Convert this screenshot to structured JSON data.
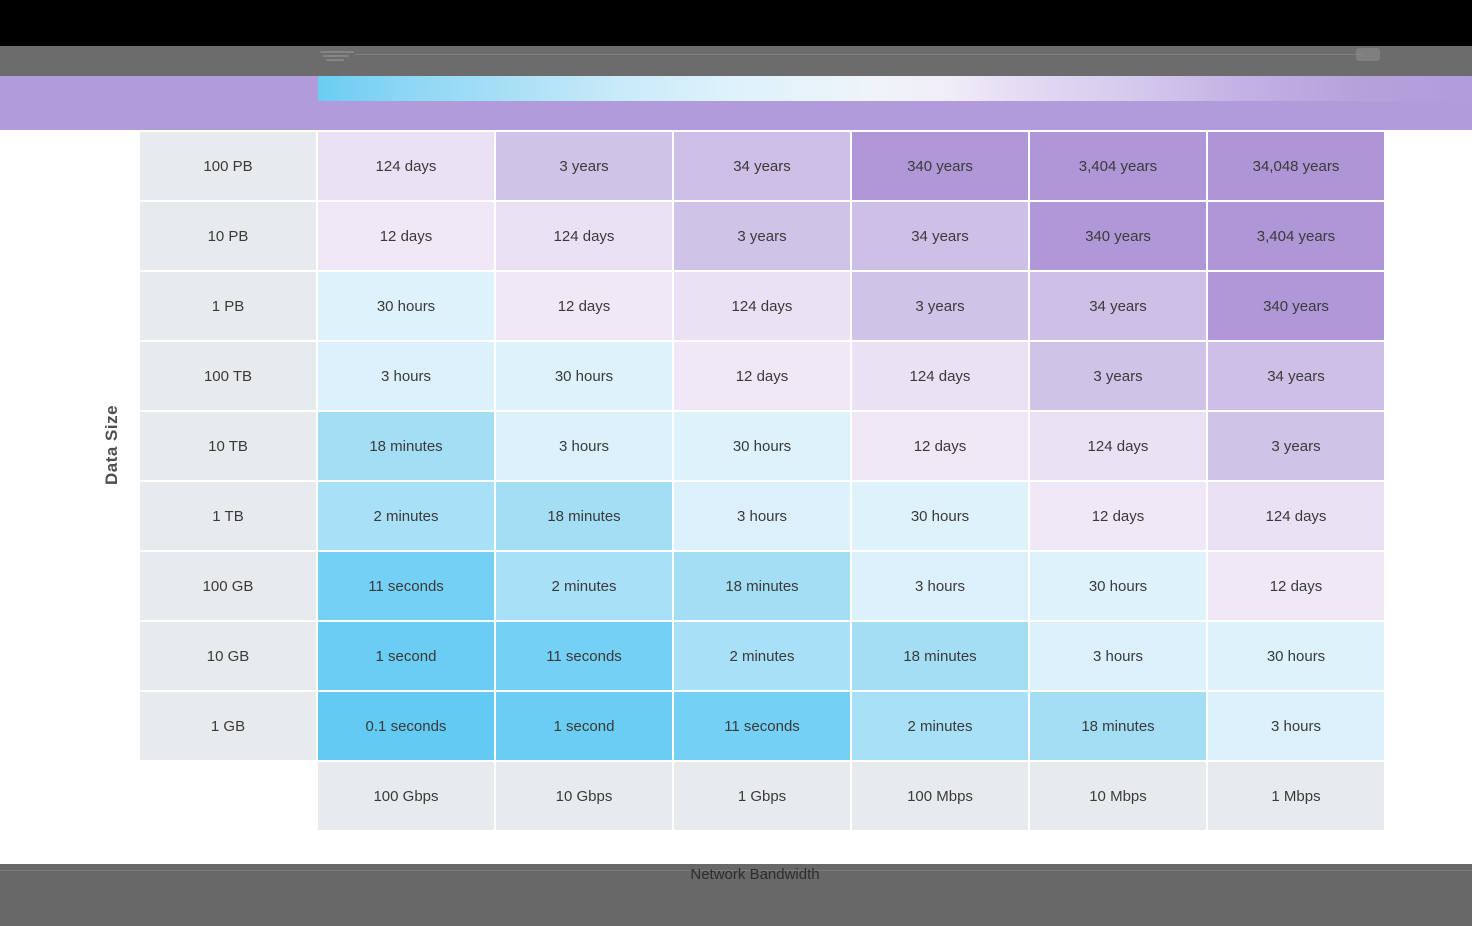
{
  "viewer": {
    "bottom_bar_label": "Network Bandwidth"
  },
  "colors": {
    "top_bar": "#000000",
    "toolbar_gray": "#6c6c6c",
    "bottom_bar_gray": "#686868",
    "legend_band_purple": "#b29bda",
    "legend_gradient_left_blue": "#6bcdf3",
    "legend_gradient_right_purple": "#b29bda",
    "header_cell_bg": "#e8ebee",
    "cell_text": "#3a3a3a"
  },
  "chart_data": {
    "type": "heatmap",
    "title": "",
    "xlabel": "Network Bandwidth",
    "ylabel": "Data Size",
    "legend": "color scale from blue (fast transfer) to purple (slow transfer)",
    "rows": [
      "100 PB",
      "10 PB",
      "1 PB",
      "100 TB",
      "10 TB",
      "1 TB",
      "100 GB",
      "10 GB",
      "1 GB"
    ],
    "columns": [
      "100 Gbps",
      "10 Gbps",
      "1 Gbps",
      "100 Mbps",
      "10 Mbps",
      "1 Mbps"
    ],
    "values": [
      [
        "124 days",
        "3 years",
        "34 years",
        "340 years",
        "3,404 years",
        "34,048 years"
      ],
      [
        "12 days",
        "124 days",
        "3 years",
        "34 years",
        "340 years",
        "3,404 years"
      ],
      [
        "30 hours",
        "12 days",
        "124 days",
        "3 years",
        "34 years",
        "340 years"
      ],
      [
        "3 hours",
        "30 hours",
        "12 days",
        "124 days",
        "3 years",
        "34 years"
      ],
      [
        "18 minutes",
        "3 hours",
        "30 hours",
        "12 days",
        "124 days",
        "3 years"
      ],
      [
        "2 minutes",
        "18 minutes",
        "3 hours",
        "30 hours",
        "12 days",
        "124 days"
      ],
      [
        "11 seconds",
        "2 minutes",
        "18 minutes",
        "3 hours",
        "30 hours",
        "12 days"
      ],
      [
        "1 second",
        "11 seconds",
        "2 minutes",
        "18 minutes",
        "3 hours",
        "30 hours"
      ],
      [
        "0.1 seconds",
        "1 second",
        "11 seconds",
        "2 minutes",
        "18 minutes",
        "3 hours"
      ]
    ],
    "header_bg": "#e8ebee",
    "palette": {
      "0.1 seconds": "#63caf3",
      "1 second": "#6bcdf3",
      "11 seconds": "#74d0f4",
      "2 minutes": "#a8e0f7",
      "18 minutes": "#a4def5",
      "3 hours": "#dcf1fb",
      "30 hours": "#def2fb",
      "12 days": "#f0e8f7",
      "124 days": "#ebe1f4",
      "3 years": "#cfc3e8",
      "34 years": "#cdbfe6",
      "340 years": "#b098d8",
      "3,404 years": "#ae96d7",
      "34,048 years": "#ad95d6"
    }
  }
}
